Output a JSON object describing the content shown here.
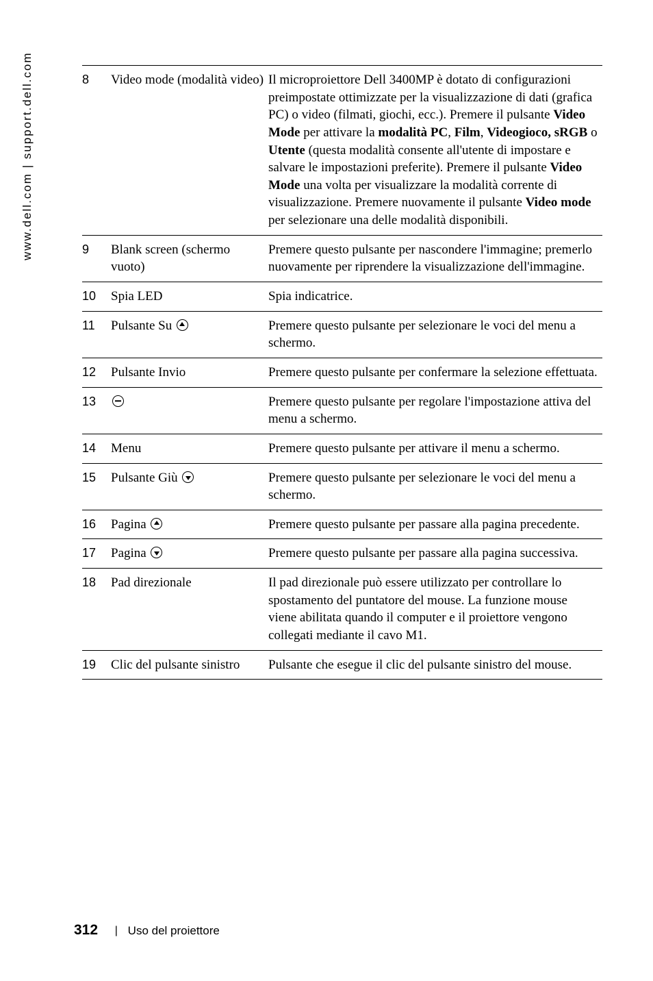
{
  "vertical_url": "www.dell.com | support.dell.com",
  "rows": [
    {
      "num": "8",
      "label": "Video mode (modalità video)",
      "desc": "Il microproiettore Dell 3400MP è dotato di configurazioni preimpostate ottimizzate per la visualizzazione di dati (grafica PC) o video (filmati, giochi, ecc.). Premere il pulsante <b>Video Mode</b> per attivare la <b>modalità PC</b>, <b>Film</b>, <b>Videogioco, sRGB</b> o <b>Utente</b> (questa modalità consente all'utente di impostare e salvare le impostazioni preferite). Premere il pulsante <b>Video Mode</b> una volta per visualizzare la modalità corrente di visualizzazione. Premere nuovamente il pulsante <b>Video mode</b> per selezionare una delle modalità disponibili."
    },
    {
      "num": "9",
      "label": "Blank screen (schermo vuoto)",
      "desc": "Premere questo pulsante per nascondere l'immagine; premerlo nuovamente per riprendere la visualizzazione dell'immagine."
    },
    {
      "num": "10",
      "label": "Spia LED",
      "desc": "Spia indicatrice."
    },
    {
      "num": "11",
      "label": "Pulsante Su ",
      "icon": "up",
      "desc": "Premere questo pulsante per selezionare le voci del menu a schermo."
    },
    {
      "num": "12",
      "label": "Pulsante Invio",
      "desc": "Premere questo pulsante per confermare la selezione effettuata."
    },
    {
      "num": "13",
      "label": "",
      "icon": "minus",
      "desc": "Premere questo pulsante per regolare l'impostazione attiva del menu a schermo."
    },
    {
      "num": "14",
      "label": "Menu",
      "desc": "Premere questo pulsante per attivare il menu a schermo."
    },
    {
      "num": "15",
      "label": "Pulsante Giù ",
      "icon": "down",
      "desc": "Premere questo pulsante per selezionare le voci del menu a schermo."
    },
    {
      "num": "16",
      "label": "Pagina ",
      "icon": "up",
      "desc": "Premere questo pulsante per passare alla pagina precedente."
    },
    {
      "num": "17",
      "label": "Pagina ",
      "icon": "down",
      "desc": "Premere questo pulsante per passare alla pagina successiva."
    },
    {
      "num": "18",
      "label": "Pad direzionale",
      "desc": "Il pad direzionale può essere utilizzato per controllare lo spostamento del puntatore del mouse. La funzione mouse viene abilitata quando il computer e il proiettore vengono collegati mediante il cavo M1."
    },
    {
      "num": "19",
      "label": "Clic del pulsante sinistro",
      "desc": "Pulsante che esegue il clic del pulsante sinistro del mouse."
    }
  ],
  "footer": {
    "page_number": "312",
    "section": "Uso del proiettore"
  }
}
